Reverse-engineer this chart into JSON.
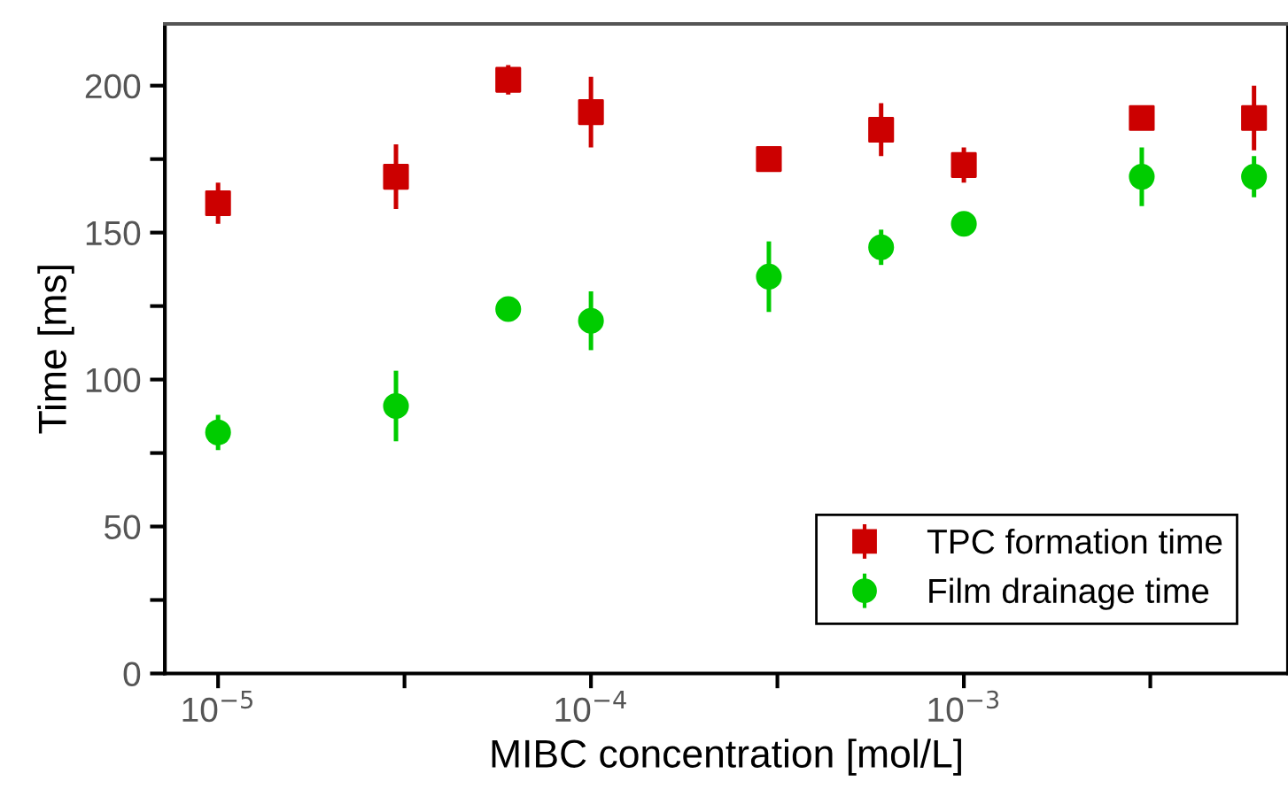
{
  "chart_data": {
    "type": "scatter",
    "xlabel": "MIBC concentration [mol/L]",
    "ylabel": "Time [ms]",
    "log": "x",
    "x": [
      1e-05,
      3e-05,
      6e-05,
      0.0001,
      0.0003,
      0.0006,
      0.001,
      0.003,
      0.006
    ],
    "series": [
      {
        "name": "TPC formation time",
        "color": "#cc0000",
        "marker": "square",
        "values": [
          160,
          169,
          202,
          191,
          175,
          185,
          173,
          189,
          189
        ],
        "errors": [
          7,
          11,
          5,
          12,
          null,
          9,
          6,
          null,
          11
        ]
      },
      {
        "name": "Film drainage time",
        "color": "#00cc00",
        "marker": "circle",
        "values": [
          82,
          91,
          124,
          120,
          135,
          145,
          153,
          169,
          169
        ],
        "errors": [
          6,
          12,
          null,
          10,
          12,
          6,
          null,
          10,
          7
        ]
      }
    ],
    "xlim": [
      7.2e-06,
      0.0074
    ],
    "xticks": [
      {
        "value": 1e-05,
        "label": "10$^{−5}$"
      },
      {
        "value": 3.162e-05,
        "label": null
      },
      {
        "value": 0.0001,
        "label": "10$^{−4}$"
      },
      {
        "value": 0.0003162,
        "label": null
      },
      {
        "value": 0.001,
        "label": "10$^{−3}$"
      },
      {
        "value": 0.003162,
        "label": null
      }
    ],
    "ylim": [
      0,
      221
    ],
    "yticks": [
      0,
      {
        "value": 25,
        "label": null
      },
      50,
      {
        "value": 75,
        "label": null
      },
      100,
      {
        "value": 125,
        "label": null
      },
      150,
      {
        "value": 175,
        "label": null
      },
      200
    ],
    "grid": false,
    "legend": "bottom right"
  }
}
